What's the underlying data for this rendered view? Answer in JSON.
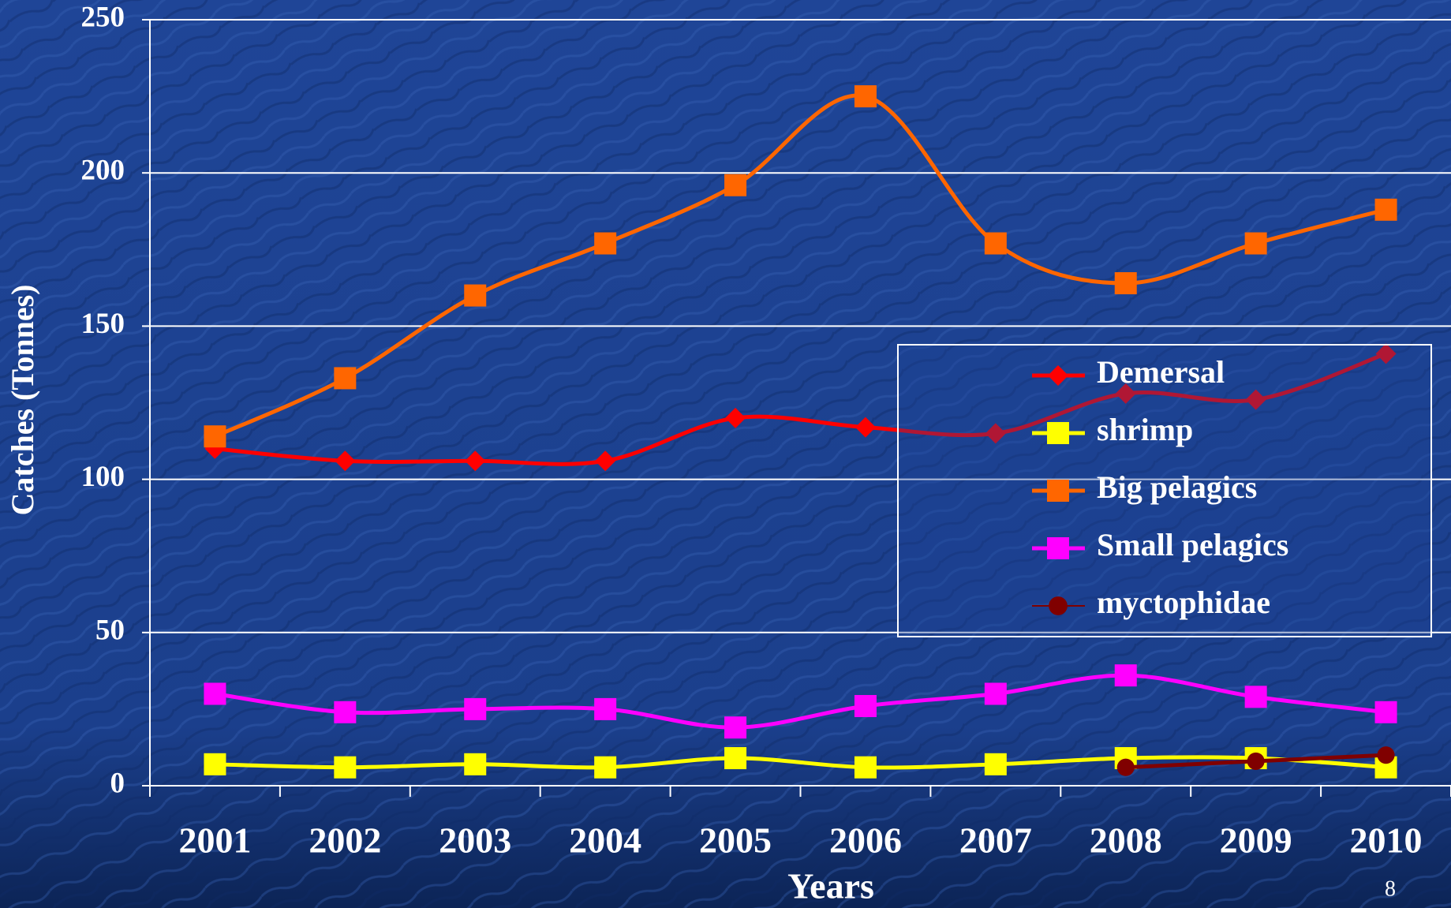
{
  "chart_data": {
    "type": "line",
    "x_label": "Years",
    "y_label": "Catches (Tonnes)",
    "categories": [
      "2001",
      "2002",
      "2003",
      "2004",
      "2005",
      "2006",
      "2007",
      "2008",
      "2009",
      "2010"
    ],
    "series": [
      {
        "name": "Demersal",
        "color": "#ff0000",
        "marker": "diamond",
        "values": [
          110,
          106,
          106,
          106,
          120,
          117,
          115,
          128,
          126,
          141
        ]
      },
      {
        "name": "shrimp",
        "color": "#ffff00",
        "marker": "square",
        "values": [
          7,
          6,
          7,
          6,
          9,
          6,
          7,
          9,
          9,
          6
        ]
      },
      {
        "name": "Big pelagics",
        "color": "#ff6600",
        "marker": "square",
        "values": [
          114,
          133,
          160,
          177,
          196,
          225,
          177,
          164,
          177,
          188
        ]
      },
      {
        "name": "Small pelagics",
        "color": "#ff00ff",
        "marker": "square",
        "values": [
          30,
          24,
          25,
          25,
          19,
          26,
          30,
          36,
          29,
          24
        ]
      },
      {
        "name": "myctophidae",
        "color": "#800000",
        "marker": "circle",
        "values": [
          null,
          null,
          null,
          null,
          null,
          null,
          null,
          6,
          8,
          10
        ]
      }
    ],
    "ylim": [
      0,
      250
    ],
    "yticks": [
      0,
      50,
      100,
      150,
      200,
      250
    ],
    "grid": true,
    "smooth": true,
    "legend": "right"
  },
  "slide_number": "8"
}
